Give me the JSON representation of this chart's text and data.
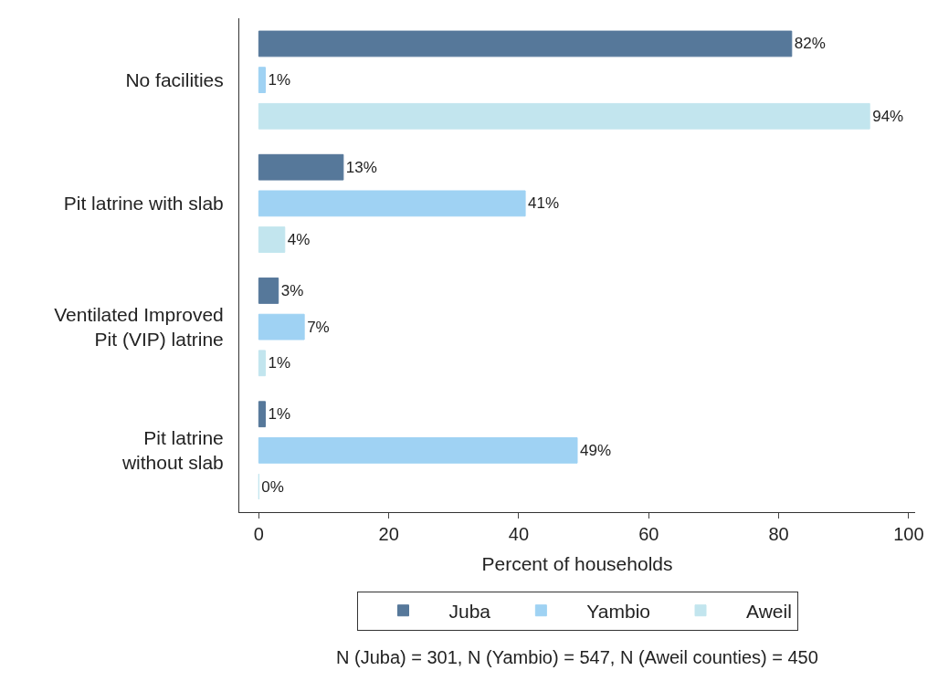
{
  "chart_data": {
    "type": "bar",
    "orientation": "horizontal",
    "categories": [
      "No facilities",
      "Pit latrine with slab",
      "Ventilated Improved\nPit (VIP) latrine",
      "Pit latrine\nwithout slab"
    ],
    "series": [
      {
        "name": "Juba",
        "color": "#56789a",
        "values": [
          82,
          13,
          3,
          1
        ],
        "value_labels": [
          "82%",
          "13%",
          "3%",
          "1%"
        ]
      },
      {
        "name": "Yambio",
        "color": "#9fd2f3",
        "values": [
          1,
          41,
          7,
          49
        ],
        "value_labels": [
          "1%",
          "41%",
          "7%",
          "49%"
        ]
      },
      {
        "name": "Aweil",
        "color": "#c2e5ee",
        "values": [
          94,
          4,
          1,
          0
        ],
        "value_labels": [
          "94%",
          "4%",
          "1%",
          "0%"
        ]
      }
    ],
    "xlabel": "Percent of households",
    "xlim": [
      -3,
      101
    ],
    "xticks": [
      0,
      20,
      40,
      60,
      80,
      100
    ],
    "legend": "bottom",
    "annotations": [
      "N (Juba) = 301, N (Yambio) = 547, N (Aweil counties) = 450"
    ]
  }
}
